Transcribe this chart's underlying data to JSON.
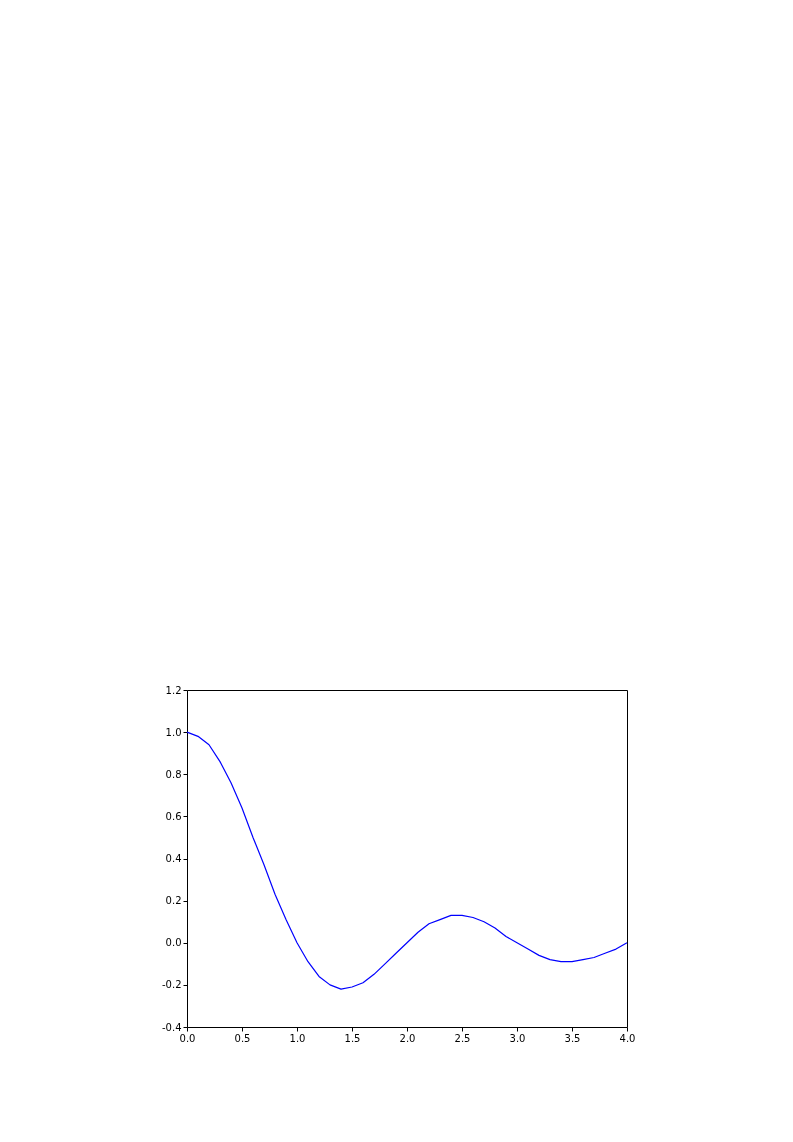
{
  "chart_data": {
    "type": "line",
    "x": [
      0,
      0.1,
      0.2,
      0.3,
      0.4,
      0.5,
      0.6,
      0.7,
      0.8,
      0.9,
      1.0,
      1.1,
      1.2,
      1.3,
      1.4,
      1.5,
      1.6,
      1.7,
      1.8,
      1.9,
      2.0,
      2.1,
      2.2,
      2.3,
      2.4,
      2.5,
      2.6,
      2.7,
      2.8,
      2.9,
      3.0,
      3.1,
      3.2,
      3.3,
      3.4,
      3.5,
      3.6,
      3.7,
      3.8,
      3.9,
      4.0
    ],
    "series": [
      {
        "color": "#0000ff",
        "values": [
          1.0,
          0.98,
          0.94,
          0.86,
          0.76,
          0.64,
          0.5,
          0.37,
          0.23,
          0.11,
          0.0,
          -0.09,
          -0.16,
          -0.2,
          -0.22,
          -0.21,
          -0.19,
          -0.15,
          -0.1,
          -0.05,
          0.0,
          0.05,
          0.09,
          0.11,
          0.13,
          0.13,
          0.12,
          0.1,
          0.07,
          0.03,
          0.0,
          -0.03,
          -0.06,
          -0.08,
          -0.09,
          -0.09,
          -0.08,
          -0.07,
          -0.05,
          -0.03,
          0.0
        ]
      }
    ],
    "xlim": [
      0,
      4
    ],
    "xticks": [
      {
        "value": 0,
        "label": "0.0"
      },
      {
        "value": 0.5,
        "label": "0.5"
      },
      {
        "value": 1,
        "label": "1.0"
      },
      {
        "value": 1.5,
        "label": "1.5"
      },
      {
        "value": 2,
        "label": "2.0"
      },
      {
        "value": 2.5,
        "label": "2.5"
      },
      {
        "value": 3,
        "label": "3.0"
      },
      {
        "value": 3.5,
        "label": "3.5"
      },
      {
        "value": 4,
        "label": "4.0"
      }
    ],
    "ylim": [
      -0.4,
      1.2
    ],
    "yticks": [
      {
        "value": -0.4,
        "label": "-0.4"
      },
      {
        "value": -0.2,
        "label": "-0.2"
      },
      {
        "value": 0,
        "label": "0.0"
      },
      {
        "value": 0.2,
        "label": "0.2"
      },
      {
        "value": 0.4,
        "label": "0.4"
      },
      {
        "value": 0.6,
        "label": "0.6"
      },
      {
        "value": 0.8,
        "label": "0.8"
      },
      {
        "value": 1,
        "label": "1.0"
      },
      {
        "value": 1.2,
        "label": "1.2"
      }
    ],
    "grid": false,
    "marker": "none",
    "line_style": "solid"
  }
}
